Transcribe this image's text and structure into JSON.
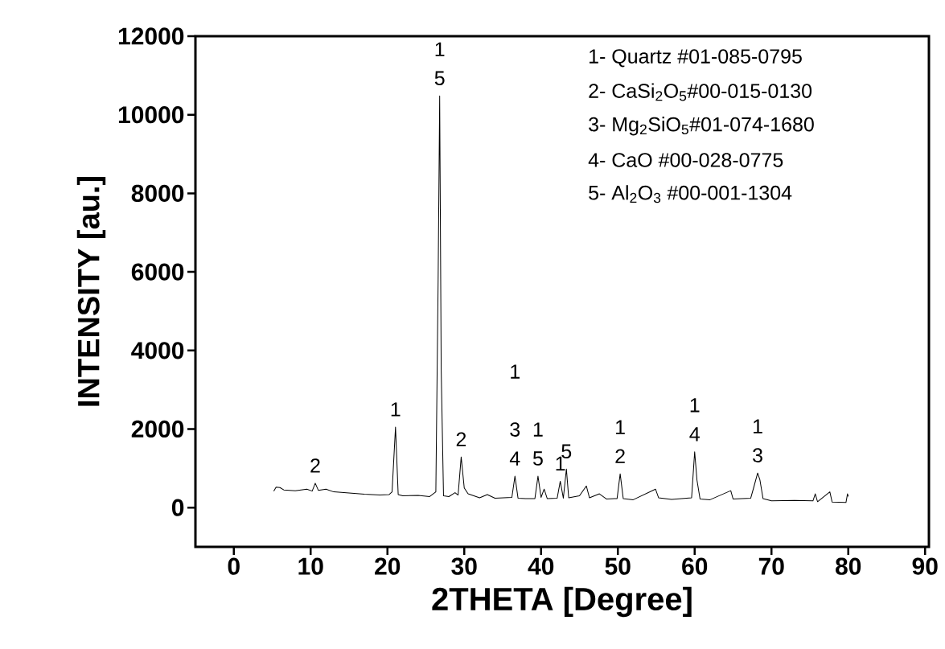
{
  "chart_data": {
    "type": "line",
    "xlabel": "2THETA [Degree]",
    "ylabel": "INTENSITY [au.]",
    "xlim": [
      -5,
      90.5
    ],
    "ylim": [
      -1000,
      12000
    ],
    "xticks": [
      0,
      10,
      20,
      30,
      40,
      50,
      60,
      70,
      80,
      90
    ],
    "yticks": [
      0,
      2000,
      4000,
      6000,
      8000,
      10000,
      12000
    ],
    "grid": false,
    "marker": "none",
    "line_style": "solid",
    "series": [
      {
        "color": "#000000",
        "x": [
          5.2,
          5.5,
          6.0,
          6.5,
          8,
          9.5,
          10.2,
          10.6,
          11.0,
          12,
          13,
          15,
          17,
          19,
          20.2,
          20.6,
          21.05,
          21.4,
          22,
          24,
          25.5,
          26.3,
          26.6,
          26.8,
          27.0,
          27.3,
          28,
          28.8,
          29.2,
          29.6,
          30.0,
          30.5,
          32,
          33,
          34,
          36.2,
          36.6,
          37.0,
          38,
          39.2,
          39.6,
          40.0,
          40.4,
          40.8,
          42.1,
          42.5,
          42.9,
          43.3,
          43.6,
          45.0,
          45.9,
          46.3,
          47.6,
          48.5,
          49.9,
          50.3,
          50.7,
          52,
          54.9,
          55.3,
          57,
          59.6,
          60.0,
          60.3,
          60.7,
          62,
          64.7,
          65.0,
          67.3,
          67.7,
          68.2,
          68.5,
          68.9,
          70,
          73,
          75.4,
          75.7,
          76,
          77.6,
          77.9,
          79.7,
          79.9,
          80.0
        ],
        "values": [
          420,
          520,
          510,
          450,
          430,
          470,
          420,
          620,
          440,
          470,
          400,
          370,
          340,
          320,
          330,
          400,
          2050,
          330,
          300,
          310,
          280,
          400,
          5800,
          10480,
          3500,
          300,
          280,
          380,
          320,
          1290,
          500,
          350,
          250,
          330,
          240,
          260,
          800,
          240,
          230,
          230,
          800,
          260,
          470,
          230,
          240,
          670,
          240,
          980,
          250,
          300,
          550,
          250,
          350,
          220,
          230,
          860,
          230,
          200,
          470,
          250,
          210,
          250,
          1420,
          700,
          220,
          200,
          430,
          220,
          240,
          520,
          880,
          700,
          230,
          170,
          180,
          170,
          350,
          150,
          400,
          140,
          130,
          350,
          280
        ]
      }
    ],
    "annotations": [
      "1- Quartz #01-085-0795",
      "2- CaSi$_{2}$O$_{5}$#00-015-0130",
      "3- Mg$_{2}$SiO$_{5}$#01-074-1680",
      "4- CaO #00-028-0775",
      "5- Al$_{2}$O$_{3}$ #00-001-1304",
      {
        "text": "2",
        "x": 10.6,
        "y": 620
      },
      {
        "text": "1",
        "x": 21.05,
        "y": 2050
      },
      {
        "text": "5",
        "x": 26.8,
        "y": 10480
      },
      {
        "text": "1",
        "x": 26.8,
        "y": 10480
      },
      {
        "text": "2",
        "x": 29.6,
        "y": 1290
      },
      {
        "text": "4",
        "x": 36.6,
        "y": 800
      },
      {
        "text": "3",
        "x": 36.6,
        "y": 800
      },
      "1",
      {
        "text": "5",
        "x": 39.6,
        "y": 800
      },
      {
        "text": "1",
        "x": 39.6,
        "y": 800
      },
      {
        "text": "1",
        "x": 42.5,
        "y": 670
      },
      {
        "text": "5",
        "x": 43.3,
        "y": 980
      },
      {
        "text": "2",
        "x": 50.3,
        "y": 860
      },
      {
        "text": "1",
        "x": 50.3,
        "y": 860
      },
      {
        "text": "4",
        "x": 60.0,
        "y": 1420
      },
      {
        "text": "1",
        "x": 60.0,
        "y": 1420
      },
      {
        "text": "3",
        "x": 68.2,
        "y": 880
      },
      {
        "text": "1",
        "x": 68.2,
        "y": 880
      }
    ]
  }
}
